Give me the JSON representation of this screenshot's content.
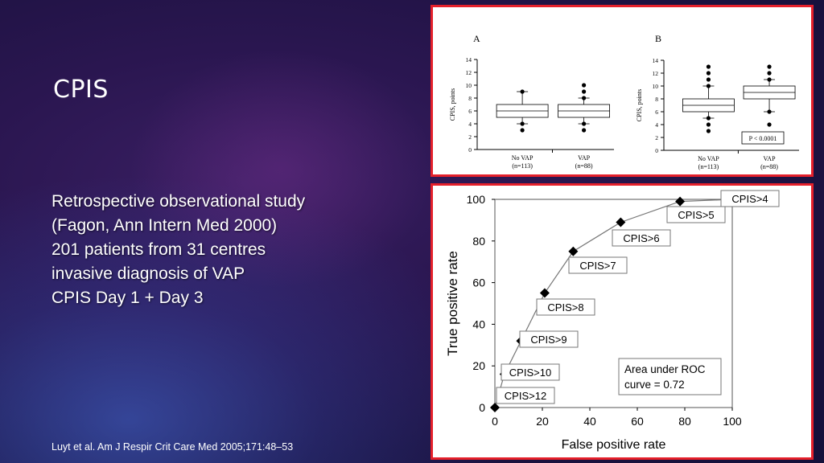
{
  "slide": {
    "title": "CPIS",
    "bullets": [
      "Retrospective observational study",
      "(Fagon, Ann Intern Med 2000)",
      "201 patients from 31 centres",
      "invasive diagnosis of VAP",
      "CPIS Day 1 + Day 3"
    ],
    "citation": "Luyt et al. Am J Respir Crit Care Med 2005;171:48–53",
    "colors": {
      "frame": "#e5202b",
      "text": "#ffffff"
    }
  },
  "chart_data": [
    {
      "type": "box",
      "panel": "A",
      "ylabel": "CPIS, points",
      "ylim": [
        0,
        14
      ],
      "yticks": [
        0,
        2,
        4,
        6,
        8,
        10,
        12,
        14
      ],
      "categories": [
        "No VAP\n(n=113)",
        "VAP\n(n=88)"
      ],
      "category_names": [
        "No VAP",
        "VAP"
      ],
      "category_counts": [
        "(n=113)",
        "(n=88)"
      ],
      "boxes": [
        {
          "whisker_low": 4,
          "q1": 5,
          "median": 6,
          "q3": 7,
          "whisker_high": 9,
          "outliers": [
            3,
            4,
            9
          ]
        },
        {
          "whisker_low": 4,
          "q1": 5,
          "median": 6,
          "q3": 7,
          "whisker_high": 8,
          "outliers": [
            3,
            4,
            8,
            9,
            10
          ]
        }
      ]
    },
    {
      "type": "box",
      "panel": "B",
      "ylabel": "CPIS, points",
      "ylim": [
        0,
        14
      ],
      "yticks": [
        0,
        2,
        4,
        6,
        8,
        10,
        12,
        14
      ],
      "categories": [
        "No VAP\n(n=113)",
        "VAP\n(n=88)"
      ],
      "category_names": [
        "No VAP",
        "VAP"
      ],
      "category_counts": [
        "(n=113)",
        "(n=88)"
      ],
      "annotation": "P < 0.0001",
      "boxes": [
        {
          "whisker_low": 5,
          "q1": 6,
          "median": 7,
          "q3": 8,
          "whisker_high": 10,
          "outliers": [
            3,
            4,
            5,
            10,
            11,
            12,
            13
          ]
        },
        {
          "whisker_low": 6,
          "q1": 8,
          "median": 9,
          "q3": 10,
          "whisker_high": 11,
          "outliers": [
            4,
            6,
            11,
            12,
            13
          ]
        }
      ]
    },
    {
      "type": "line",
      "xlabel": "False positive rate",
      "ylabel": "True positive rate",
      "xlim": [
        0,
        100
      ],
      "ylim": [
        0,
        100
      ],
      "xticks": [
        0,
        20,
        40,
        60,
        80,
        100
      ],
      "yticks": [
        0,
        20,
        40,
        60,
        80,
        100
      ],
      "annotation": [
        "Area under ROC",
        "curve = 0.72"
      ],
      "points": [
        {
          "x": 0,
          "y": 0,
          "label": "CPIS>12"
        },
        {
          "x": 4,
          "y": 16,
          "label": "CPIS>10"
        },
        {
          "x": 11,
          "y": 32,
          "label": "CPIS>9"
        },
        {
          "x": 21,
          "y": 55,
          "label": "CPIS>8"
        },
        {
          "x": 33,
          "y": 75,
          "label": "CPIS>7"
        },
        {
          "x": 53,
          "y": 89,
          "label": "CPIS>6"
        },
        {
          "x": 78,
          "y": 99,
          "label": "CPIS>5"
        },
        {
          "x": 100,
          "y": 100,
          "label": "CPIS>4"
        }
      ]
    }
  ]
}
